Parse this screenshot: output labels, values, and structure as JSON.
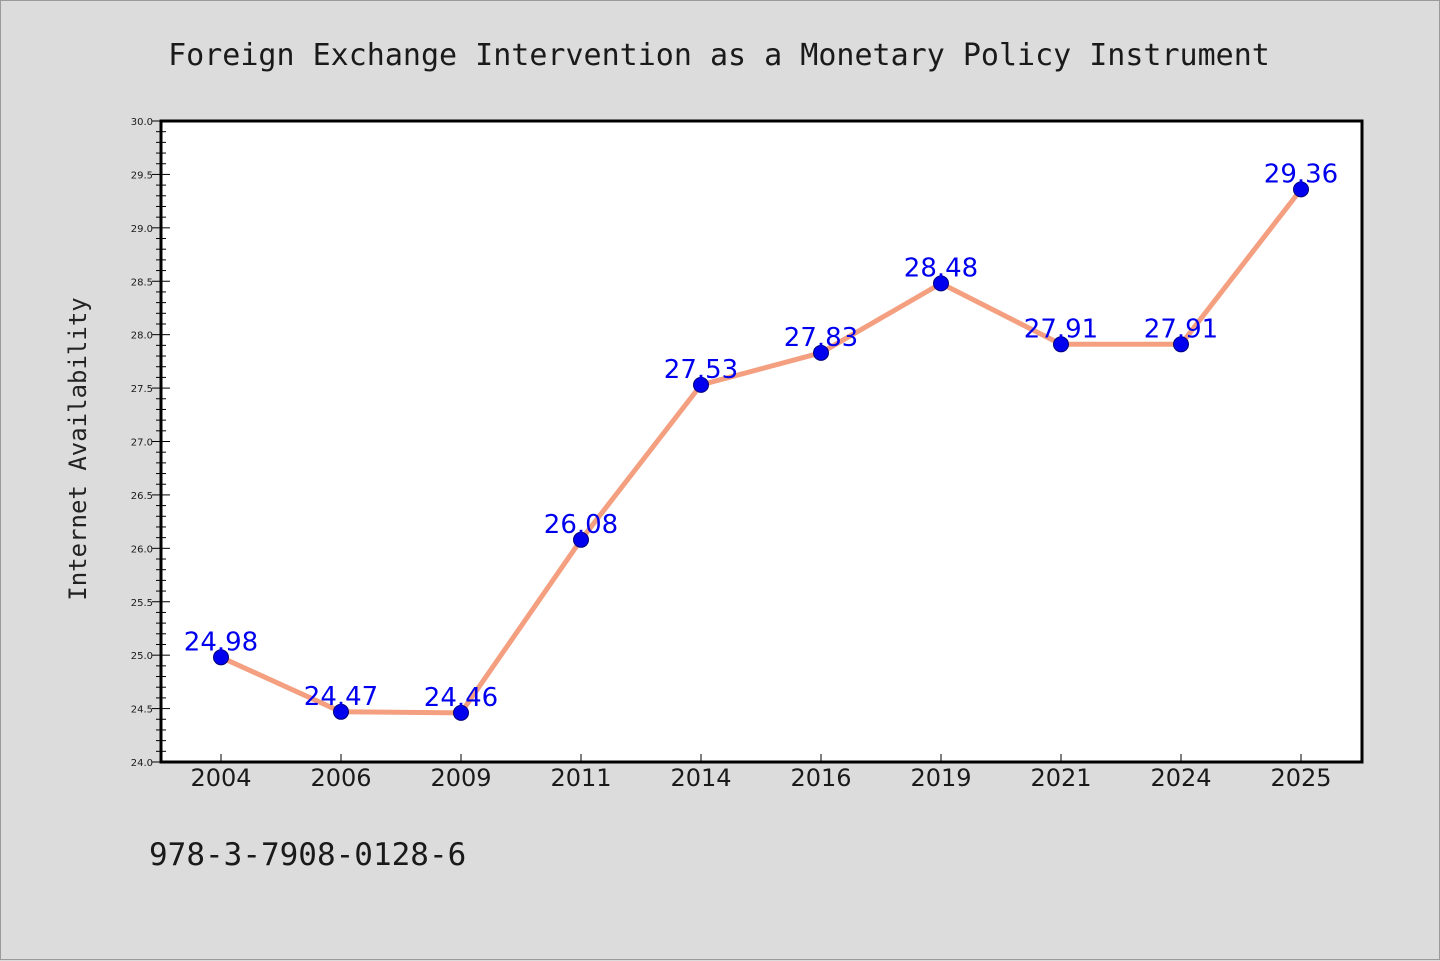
{
  "chart_data": {
    "type": "line",
    "title": "Foreign Exchange Intervention as a Monetary Policy Instrument",
    "xlabel": "",
    "ylabel": "Internet Availability",
    "categories": [
      "2004",
      "2006",
      "2009",
      "2011",
      "2014",
      "2016",
      "2019",
      "2021",
      "2024",
      "2025"
    ],
    "values": [
      24.98,
      24.47,
      24.46,
      26.08,
      27.53,
      27.83,
      28.48,
      27.91,
      27.91,
      29.36
    ],
    "data_labels": [
      "24.98",
      "24.47",
      "24.46",
      "26.08",
      "27.53",
      "27.83",
      "28.48",
      "27.91",
      "27.91",
      "29.36"
    ],
    "ylim": [
      24.0,
      30.0
    ],
    "yticks": [
      "24.0",
      "24.5",
      "25.0",
      "25.5",
      "26.0",
      "26.5",
      "27.0",
      "27.5",
      "28.0",
      "28.5",
      "29.0",
      "29.5",
      "30.0"
    ],
    "grid": false,
    "line_color": "#f4a080",
    "marker_color": "#0000ee",
    "label_color": "#0000ee"
  },
  "footnote": "978-3-7908-0128-6"
}
